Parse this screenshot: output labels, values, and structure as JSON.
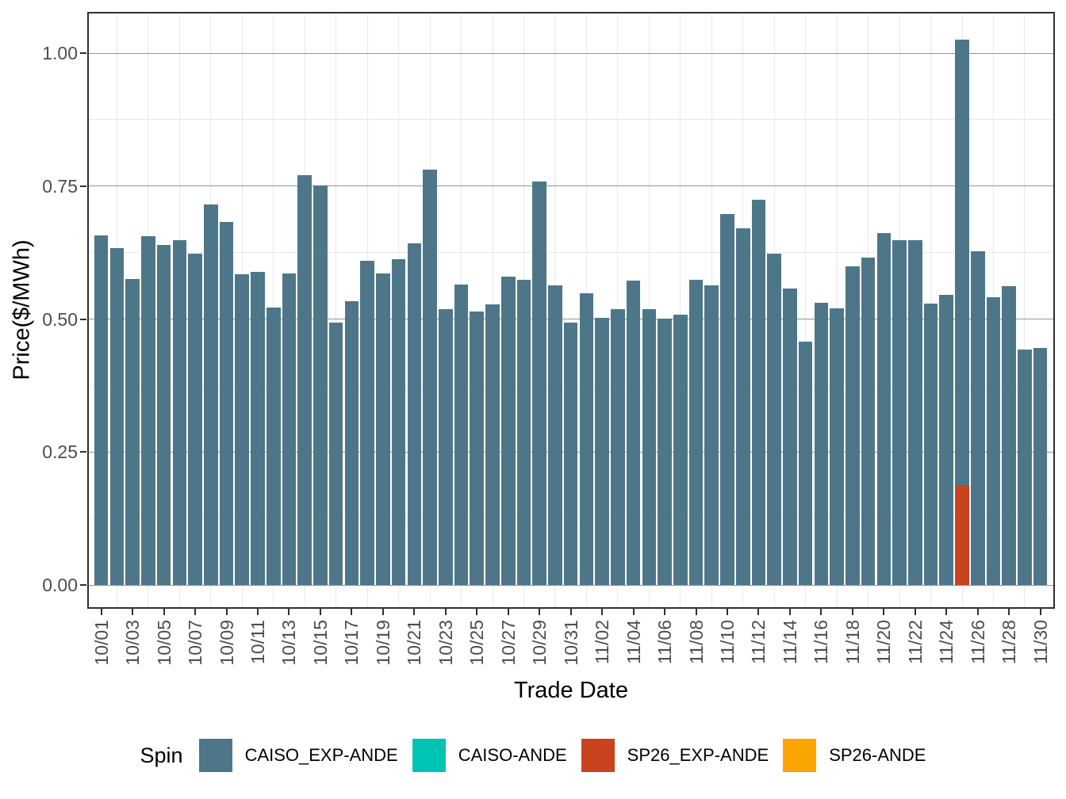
{
  "chart_data": {
    "type": "bar",
    "title": "",
    "xlabel": "Trade Date",
    "ylabel": "Price($/MWh)",
    "legend": {
      "title": "Spin",
      "position": "bottom"
    },
    "ylim": [
      0,
      1.08
    ],
    "yticks": [
      0,
      0.25,
      0.5,
      0.75,
      1
    ],
    "ytick_labels": [
      "0.00",
      "0.25",
      "0.50",
      "0.75",
      "1.00"
    ],
    "y_minor": [
      0.125,
      0.375,
      0.625,
      0.875
    ],
    "grid": true,
    "categories": [
      "10/01",
      "10/02",
      "10/03",
      "10/04",
      "10/05",
      "10/06",
      "10/07",
      "10/08",
      "10/09",
      "10/10",
      "10/11",
      "10/12",
      "10/13",
      "10/14",
      "10/15",
      "10/16",
      "10/17",
      "10/18",
      "10/19",
      "10/20",
      "10/21",
      "10/22",
      "10/23",
      "10/24",
      "10/25",
      "10/26",
      "10/27",
      "10/28",
      "10/29",
      "10/30",
      "10/31",
      "11/01",
      "11/02",
      "11/03",
      "11/04",
      "11/05",
      "11/06",
      "11/07",
      "11/08",
      "11/09",
      "11/10",
      "11/11",
      "11/12",
      "11/13",
      "11/14",
      "11/15",
      "11/16",
      "11/17",
      "11/18",
      "11/19",
      "11/20",
      "11/21",
      "11/22",
      "11/23",
      "11/24",
      "11/25",
      "11/26",
      "11/27",
      "11/28",
      "11/29",
      "11/30"
    ],
    "xtick_labels": [
      "10/01",
      "10/03",
      "10/05",
      "10/07",
      "10/09",
      "10/11",
      "10/13",
      "10/15",
      "10/17",
      "10/19",
      "10/21",
      "10/23",
      "10/25",
      "10/27",
      "10/29",
      "10/31",
      "11/02",
      "11/04",
      "11/06",
      "11/08",
      "11/10",
      "11/12",
      "11/14",
      "11/16",
      "11/18",
      "11/20",
      "11/22",
      "11/24",
      "11/26",
      "11/28",
      "11/30"
    ],
    "series": [
      {
        "name": "CAISO_EXP-ANDE",
        "color": "#4e7689",
        "values": [
          0.657,
          0.633,
          0.576,
          0.656,
          0.639,
          0.649,
          0.623,
          0.716,
          0.682,
          0.584,
          0.588,
          0.521,
          0.585,
          0.77,
          0.751,
          0.493,
          0.533,
          0.609,
          0.586,
          0.612,
          0.642,
          0.781,
          0.519,
          0.565,
          0.514,
          0.528,
          0.58,
          0.574,
          0.758,
          0.564,
          0.493,
          0.549,
          0.502,
          0.518,
          0.573,
          0.518,
          0.501,
          0.508,
          0.574,
          0.563,
          0.697,
          0.67,
          0.724,
          0.623,
          0.558,
          0.458,
          0.531,
          0.52,
          0.599,
          0.615,
          0.662,
          0.649,
          0.649,
          0.529,
          0.546,
          1.026,
          0.628,
          0.541,
          0.562,
          0.443,
          0.446
        ]
      },
      {
        "name": "CAISO-ANDE",
        "color": "#00c4b3",
        "values": []
      },
      {
        "name": "SP26_EXP-ANDE",
        "color": "#c8431e",
        "values_by_date": {
          "11/25": 0.188
        }
      },
      {
        "name": "SP26-ANDE",
        "color": "#fca402",
        "values": []
      }
    ]
  },
  "colors": {
    "axis_text": "#4d4d4d",
    "title_text": "#000000",
    "grid_major": "#959595",
    "grid_minor": "#e8e8e8",
    "panel_border": "#303030",
    "background": "#ffffff"
  }
}
